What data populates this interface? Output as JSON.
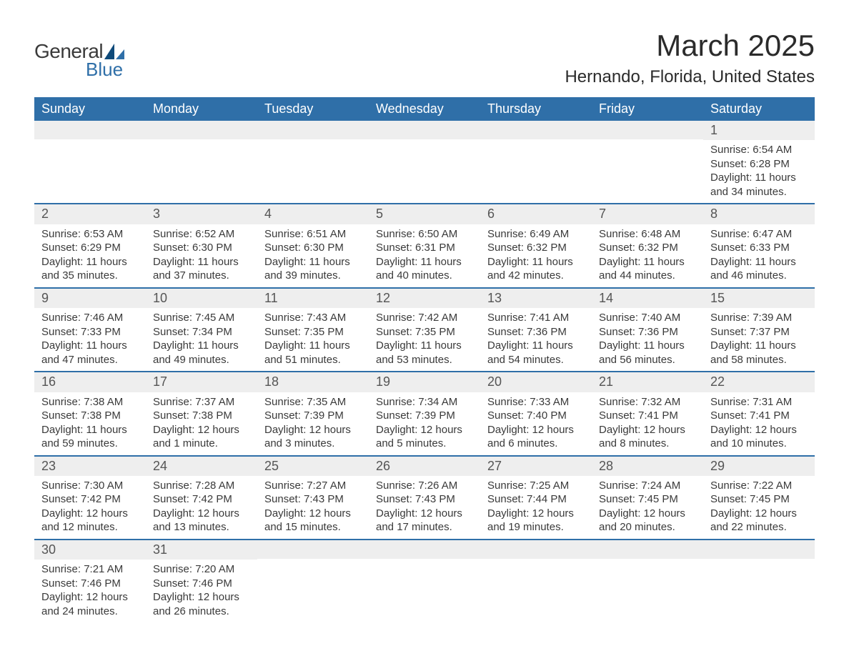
{
  "brand": {
    "word1": "General",
    "word2": "Blue",
    "accent_color": "#2f6fa8"
  },
  "title": "March 2025",
  "location": "Hernando, Florida, United States",
  "day_headers": [
    "Sunday",
    "Monday",
    "Tuesday",
    "Wednesday",
    "Thursday",
    "Friday",
    "Saturday"
  ],
  "colors": {
    "header_bg": "#2f6fa8",
    "header_text": "#ffffff",
    "daynum_bg": "#eeeeee",
    "row_border": "#2f6fa8",
    "body_text": "#3a3a3a"
  },
  "weeks": [
    [
      null,
      null,
      null,
      null,
      null,
      null,
      {
        "n": "1",
        "sunrise": "6:54 AM",
        "sunset": "6:28 PM",
        "daylight": "11 hours and 34 minutes."
      }
    ],
    [
      {
        "n": "2",
        "sunrise": "6:53 AM",
        "sunset": "6:29 PM",
        "daylight": "11 hours and 35 minutes."
      },
      {
        "n": "3",
        "sunrise": "6:52 AM",
        "sunset": "6:30 PM",
        "daylight": "11 hours and 37 minutes."
      },
      {
        "n": "4",
        "sunrise": "6:51 AM",
        "sunset": "6:30 PM",
        "daylight": "11 hours and 39 minutes."
      },
      {
        "n": "5",
        "sunrise": "6:50 AM",
        "sunset": "6:31 PM",
        "daylight": "11 hours and 40 minutes."
      },
      {
        "n": "6",
        "sunrise": "6:49 AM",
        "sunset": "6:32 PM",
        "daylight": "11 hours and 42 minutes."
      },
      {
        "n": "7",
        "sunrise": "6:48 AM",
        "sunset": "6:32 PM",
        "daylight": "11 hours and 44 minutes."
      },
      {
        "n": "8",
        "sunrise": "6:47 AM",
        "sunset": "6:33 PM",
        "daylight": "11 hours and 46 minutes."
      }
    ],
    [
      {
        "n": "9",
        "sunrise": "7:46 AM",
        "sunset": "7:33 PM",
        "daylight": "11 hours and 47 minutes."
      },
      {
        "n": "10",
        "sunrise": "7:45 AM",
        "sunset": "7:34 PM",
        "daylight": "11 hours and 49 minutes."
      },
      {
        "n": "11",
        "sunrise": "7:43 AM",
        "sunset": "7:35 PM",
        "daylight": "11 hours and 51 minutes."
      },
      {
        "n": "12",
        "sunrise": "7:42 AM",
        "sunset": "7:35 PM",
        "daylight": "11 hours and 53 minutes."
      },
      {
        "n": "13",
        "sunrise": "7:41 AM",
        "sunset": "7:36 PM",
        "daylight": "11 hours and 54 minutes."
      },
      {
        "n": "14",
        "sunrise": "7:40 AM",
        "sunset": "7:36 PM",
        "daylight": "11 hours and 56 minutes."
      },
      {
        "n": "15",
        "sunrise": "7:39 AM",
        "sunset": "7:37 PM",
        "daylight": "11 hours and 58 minutes."
      }
    ],
    [
      {
        "n": "16",
        "sunrise": "7:38 AM",
        "sunset": "7:38 PM",
        "daylight": "11 hours and 59 minutes."
      },
      {
        "n": "17",
        "sunrise": "7:37 AM",
        "sunset": "7:38 PM",
        "daylight": "12 hours and 1 minute."
      },
      {
        "n": "18",
        "sunrise": "7:35 AM",
        "sunset": "7:39 PM",
        "daylight": "12 hours and 3 minutes."
      },
      {
        "n": "19",
        "sunrise": "7:34 AM",
        "sunset": "7:39 PM",
        "daylight": "12 hours and 5 minutes."
      },
      {
        "n": "20",
        "sunrise": "7:33 AM",
        "sunset": "7:40 PM",
        "daylight": "12 hours and 6 minutes."
      },
      {
        "n": "21",
        "sunrise": "7:32 AM",
        "sunset": "7:41 PM",
        "daylight": "12 hours and 8 minutes."
      },
      {
        "n": "22",
        "sunrise": "7:31 AM",
        "sunset": "7:41 PM",
        "daylight": "12 hours and 10 minutes."
      }
    ],
    [
      {
        "n": "23",
        "sunrise": "7:30 AM",
        "sunset": "7:42 PM",
        "daylight": "12 hours and 12 minutes."
      },
      {
        "n": "24",
        "sunrise": "7:28 AM",
        "sunset": "7:42 PM",
        "daylight": "12 hours and 13 minutes."
      },
      {
        "n": "25",
        "sunrise": "7:27 AM",
        "sunset": "7:43 PM",
        "daylight": "12 hours and 15 minutes."
      },
      {
        "n": "26",
        "sunrise": "7:26 AM",
        "sunset": "7:43 PM",
        "daylight": "12 hours and 17 minutes."
      },
      {
        "n": "27",
        "sunrise": "7:25 AM",
        "sunset": "7:44 PM",
        "daylight": "12 hours and 19 minutes."
      },
      {
        "n": "28",
        "sunrise": "7:24 AM",
        "sunset": "7:45 PM",
        "daylight": "12 hours and 20 minutes."
      },
      {
        "n": "29",
        "sunrise": "7:22 AM",
        "sunset": "7:45 PM",
        "daylight": "12 hours and 22 minutes."
      }
    ],
    [
      {
        "n": "30",
        "sunrise": "7:21 AM",
        "sunset": "7:46 PM",
        "daylight": "12 hours and 24 minutes."
      },
      {
        "n": "31",
        "sunrise": "7:20 AM",
        "sunset": "7:46 PM",
        "daylight": "12 hours and 26 minutes."
      },
      null,
      null,
      null,
      null,
      null
    ]
  ],
  "labels": {
    "sunrise": "Sunrise:",
    "sunset": "Sunset:",
    "daylight": "Daylight:"
  }
}
